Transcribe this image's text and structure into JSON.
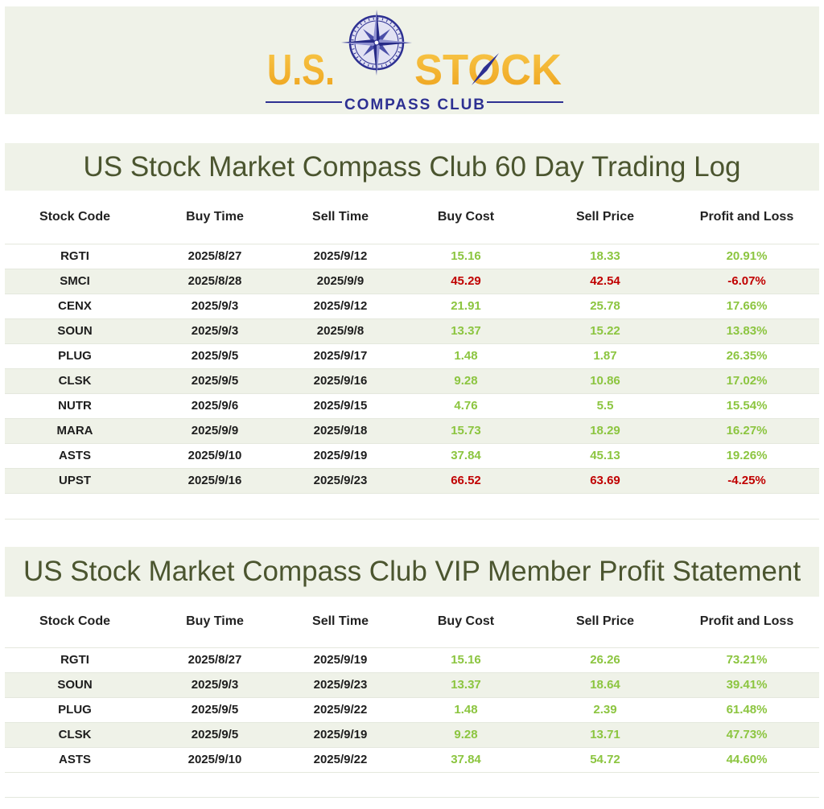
{
  "colors": {
    "gain": "#8cc540",
    "loss": "#c00000",
    "title": "#4b552f",
    "band": "#eff2e8",
    "logo_gold": "#f2b230",
    "logo_navy": "#2d3092"
  },
  "logo": {
    "left_text": "U.S.",
    "right_text": "STOCK",
    "subtitle": "COMPASS CLUB",
    "icon": "compass-icon"
  },
  "trading_log": {
    "title": "US Stock Market Compass Club 60 Day Trading Log",
    "columns": [
      "Stock Code",
      "Buy Time",
      "Sell Time",
      "Buy Cost",
      "Sell Price",
      "Profit and Loss"
    ],
    "rows": [
      {
        "code": "RGTI",
        "buy_time": "2025/8/27",
        "sell_time": "2025/9/12",
        "buy_cost": "15.16",
        "sell_price": "18.33",
        "pnl": "20.91%"
      },
      {
        "code": "SMCI",
        "buy_time": "2025/8/28",
        "sell_time": "2025/9/9",
        "buy_cost": "45.29",
        "sell_price": "42.54",
        "pnl": "-6.07%"
      },
      {
        "code": "CENX",
        "buy_time": "2025/9/3",
        "sell_time": "2025/9/12",
        "buy_cost": "21.91",
        "sell_price": "25.78",
        "pnl": "17.66%"
      },
      {
        "code": "SOUN",
        "buy_time": "2025/9/3",
        "sell_time": "2025/9/8",
        "buy_cost": "13.37",
        "sell_price": "15.22",
        "pnl": "13.83%"
      },
      {
        "code": "PLUG",
        "buy_time": "2025/9/5",
        "sell_time": "2025/9/17",
        "buy_cost": "1.48",
        "sell_price": "1.87",
        "pnl": "26.35%"
      },
      {
        "code": "CLSK",
        "buy_time": "2025/9/5",
        "sell_time": "2025/9/16",
        "buy_cost": "9.28",
        "sell_price": "10.86",
        "pnl": "17.02%"
      },
      {
        "code": "NUTR",
        "buy_time": "2025/9/6",
        "sell_time": "2025/9/15",
        "buy_cost": "4.76",
        "sell_price": "5.5",
        "pnl": "15.54%"
      },
      {
        "code": "MARA",
        "buy_time": "2025/9/9",
        "sell_time": "2025/9/18",
        "buy_cost": "15.73",
        "sell_price": "18.29",
        "pnl": "16.27%"
      },
      {
        "code": "ASTS",
        "buy_time": "2025/9/10",
        "sell_time": "2025/9/19",
        "buy_cost": "37.84",
        "sell_price": "45.13",
        "pnl": "19.26%"
      },
      {
        "code": "UPST",
        "buy_time": "2025/9/16",
        "sell_time": "2025/9/23",
        "buy_cost": "66.52",
        "sell_price": "63.69",
        "pnl": "-4.25%"
      }
    ]
  },
  "vip_statement": {
    "title": "US Stock Market Compass Club VIP Member Profit Statement",
    "columns": [
      "Stock Code",
      "Buy Time",
      "Sell Time",
      "Buy Cost",
      "Sell Price",
      "Profit and Loss"
    ],
    "rows": [
      {
        "code": "RGTI",
        "buy_time": "2025/8/27",
        "sell_time": "2025/9/19",
        "buy_cost": "15.16",
        "sell_price": "26.26",
        "pnl": "73.21%"
      },
      {
        "code": "SOUN",
        "buy_time": "2025/9/3",
        "sell_time": "2025/9/23",
        "buy_cost": "13.37",
        "sell_price": "18.64",
        "pnl": "39.41%"
      },
      {
        "code": "PLUG",
        "buy_time": "2025/9/5",
        "sell_time": "2025/9/22",
        "buy_cost": "1.48",
        "sell_price": "2.39",
        "pnl": "61.48%"
      },
      {
        "code": "CLSK",
        "buy_time": "2025/9/5",
        "sell_time": "2025/9/19",
        "buy_cost": "9.28",
        "sell_price": "13.71",
        "pnl": "47.73%"
      },
      {
        "code": "ASTS",
        "buy_time": "2025/9/10",
        "sell_time": "2025/9/22",
        "buy_cost": "37.84",
        "sell_price": "54.72",
        "pnl": "44.60%"
      }
    ]
  }
}
